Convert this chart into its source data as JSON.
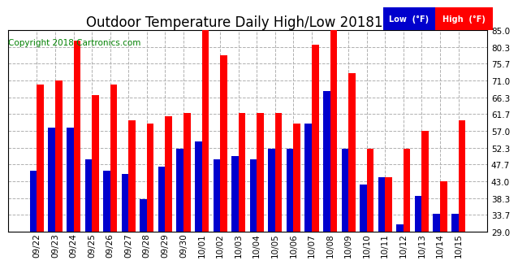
{
  "title": "Outdoor Temperature Daily High/Low 20181016",
  "copyright": "Copyright 2018 Cartronics.com",
  "legend_low": "Low  (°F)",
  "legend_high": "High  (°F)",
  "categories": [
    "09/22",
    "09/23",
    "09/24",
    "09/25",
    "09/26",
    "09/27",
    "09/28",
    "09/29",
    "09/30",
    "10/01",
    "10/02",
    "10/03",
    "10/04",
    "10/05",
    "10/06",
    "10/07",
    "10/08",
    "10/09",
    "10/10",
    "10/11",
    "10/12",
    "10/13",
    "10/14",
    "10/15"
  ],
  "high_values": [
    70,
    71,
    82,
    67,
    70,
    60,
    59,
    61,
    62,
    85,
    78,
    62,
    62,
    62,
    59,
    81,
    85,
    73,
    52,
    44,
    52,
    57,
    43,
    60
  ],
  "low_values": [
    46,
    58,
    58,
    49,
    46,
    45,
    38,
    47,
    52,
    54,
    49,
    50,
    49,
    52,
    52,
    59,
    68,
    52,
    42,
    44,
    31,
    39,
    34,
    34
  ],
  "ylim": [
    29.0,
    85.0
  ],
  "yticks": [
    29.0,
    33.7,
    38.3,
    43.0,
    47.7,
    52.3,
    57.0,
    61.7,
    66.3,
    71.0,
    75.7,
    80.3,
    85.0
  ],
  "bar_width": 0.38,
  "high_color": "#ff0000",
  "low_color": "#0000cd",
  "bg_color": "#ffffff",
  "plot_bg_color": "#ffffff",
  "grid_color": "#b0b0b0",
  "title_fontsize": 12,
  "tick_fontsize": 7.5,
  "copyright_fontsize": 7.5
}
